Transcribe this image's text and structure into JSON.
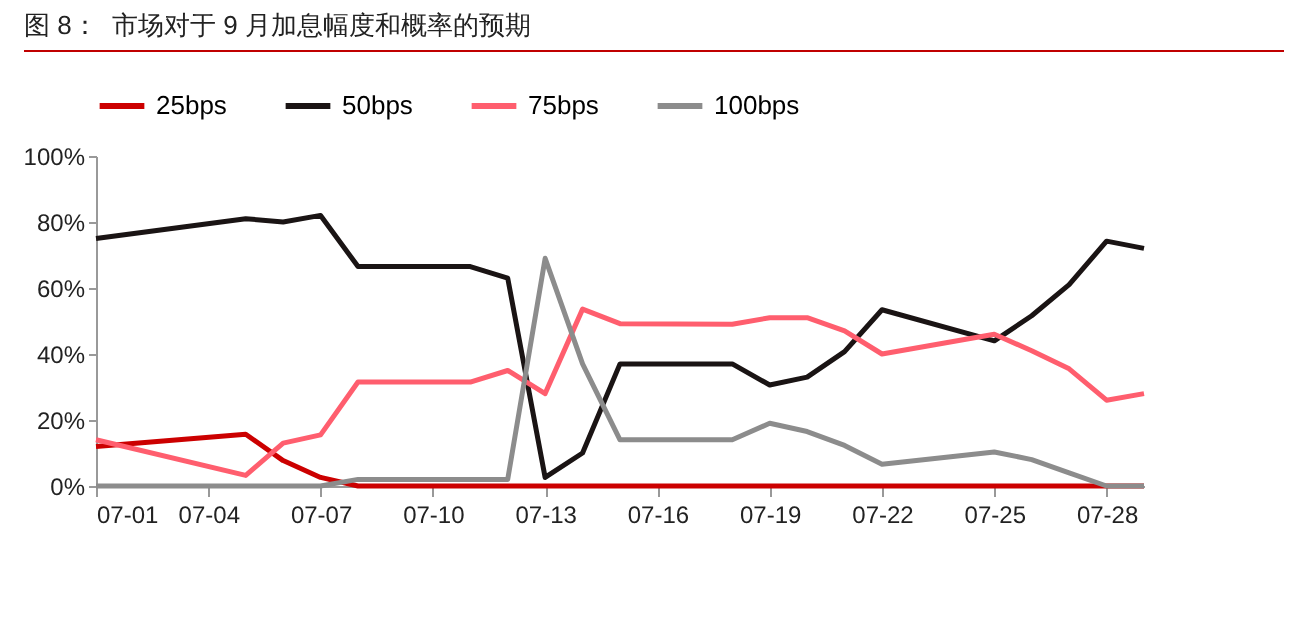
{
  "chart_data": {
    "type": "line",
    "title": "图 8：  市场对于 9 月加息幅度和概率的预期",
    "x": [
      "--07-01",
      "--07-05",
      "--07-06",
      "--07-07",
      "--07-08",
      "--07-11",
      "--07-12",
      "--07-13",
      "--07-14",
      "--07-15",
      "--07-18",
      "--07-19",
      "--07-20",
      "--07-21",
      "--07-22",
      "--07-25",
      "--07-26",
      "--07-27",
      "--07-28",
      "--07-29"
    ],
    "series": [
      {
        "name": "25bps",
        "color": "#cc0000",
        "values": [
          12,
          15.7,
          7.7,
          2.6,
          0,
          0,
          0,
          0,
          0,
          0,
          0,
          0,
          0,
          0,
          0,
          0,
          0,
          0,
          0,
          0
        ]
      },
      {
        "name": "50bps",
        "color": "#1a1414",
        "values": [
          75,
          81,
          80,
          82,
          66.5,
          66.5,
          63,
          2.6,
          10,
          37,
          37,
          30.6,
          33,
          40.7,
          53.4,
          44,
          51.6,
          61,
          74.2,
          72
        ]
      },
      {
        "name": "75bps",
        "color": "#ff5e6e",
        "values": [
          14,
          3.2,
          13,
          15.5,
          31.5,
          31.5,
          35,
          28,
          53.6,
          49.2,
          49,
          51,
          51,
          47,
          40,
          46,
          41,
          35.5,
          26,
          28
        ]
      },
      {
        "name": "100bps",
        "color": "#8c8c8c",
        "values": [
          0,
          0,
          0,
          0,
          2,
          2,
          2,
          69,
          37,
          14,
          14,
          19,
          16.5,
          12.3,
          6.6,
          10.3,
          8,
          4,
          0,
          0
        ]
      }
    ],
    "xlim": [
      "--07-01",
      "--07-29"
    ],
    "xticks": [
      {
        "value": "--07-01",
        "label": "07-01"
      },
      {
        "value": "--07-04",
        "label": "07-04"
      },
      {
        "value": "--07-07",
        "label": "07-07"
      },
      {
        "value": "--07-10",
        "label": "07-10"
      },
      {
        "value": "--07-13",
        "label": "07-13"
      },
      {
        "value": "--07-16",
        "label": "07-16"
      },
      {
        "value": "--07-19",
        "label": "07-19"
      },
      {
        "value": "--07-22",
        "label": "07-22"
      },
      {
        "value": "--07-25",
        "label": "07-25"
      },
      {
        "value": "--07-28",
        "label": "07-28"
      }
    ],
    "ylim": [
      0,
      100
    ],
    "yticks": [
      {
        "value": 0,
        "label": "0%"
      },
      {
        "value": 20,
        "label": "20%"
      },
      {
        "value": 40,
        "label": "40%"
      },
      {
        "value": 60,
        "label": "60%"
      },
      {
        "value": 80,
        "label": "80%"
      },
      {
        "value": 100,
        "label": "100%"
      }
    ],
    "grid": false,
    "legend": "top",
    "line_style": "solid"
  }
}
